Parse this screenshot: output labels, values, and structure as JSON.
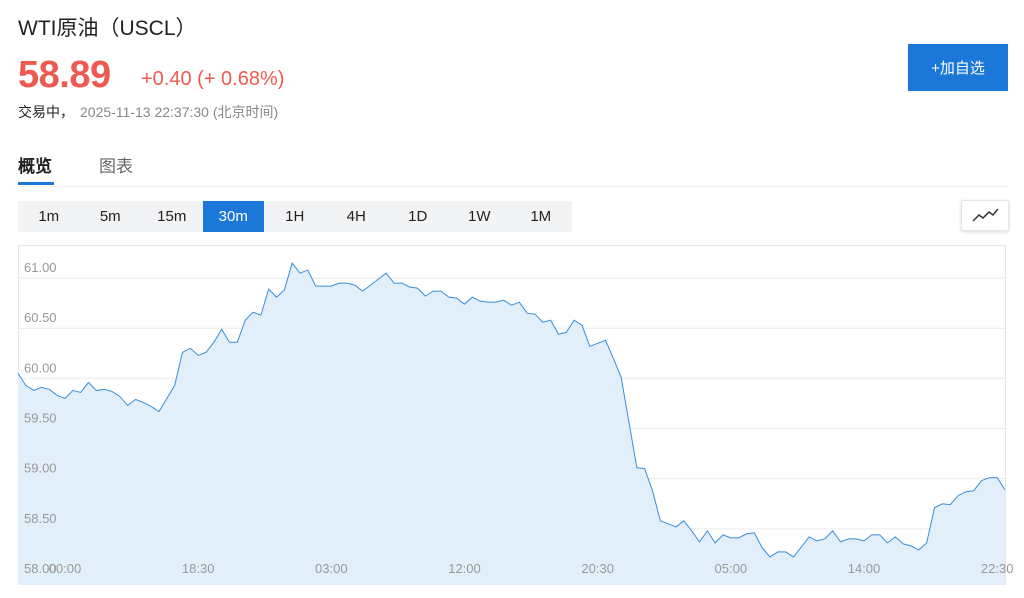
{
  "header": {
    "title": "WTI原油（USCL）",
    "price": "58.89",
    "change": "+0.40 (+ 0.68%)",
    "status": "交易中，",
    "time": "2025-11-13 22:37:30 (北京时间)",
    "button": "+加自选"
  },
  "tabs": [
    "概览",
    "图表"
  ],
  "intervals": [
    "1m",
    "5m",
    "15m",
    "30m",
    "1H",
    "4H",
    "1D",
    "1W",
    "1M"
  ],
  "chart_data": {
    "type": "area",
    "color": "#3a8ed8",
    "fill": "#e2effb",
    "grid": true,
    "categories": [
      null,
      null,
      null,
      null,
      null,
      null,
      "00:00",
      null,
      null,
      null,
      null,
      null,
      null,
      null,
      null,
      null,
      null,
      null,
      null,
      null,
      null,
      null,
      null,
      "18:30",
      null,
      null,
      null,
      null,
      null,
      null,
      null,
      null,
      null,
      null,
      null,
      null,
      null,
      null,
      null,
      null,
      "03:00",
      null,
      null,
      null,
      null,
      null,
      null,
      null,
      null,
      null,
      null,
      null,
      null,
      null,
      null,
      null,
      null,
      "12:00",
      null,
      null,
      null,
      null,
      null,
      null,
      null,
      null,
      null,
      null,
      null,
      null,
      null,
      null,
      null,
      null,
      "20:30",
      null,
      null,
      null,
      null,
      null,
      null,
      null,
      null,
      null,
      null,
      null,
      null,
      null,
      null,
      null,
      null,
      "05:00",
      null,
      null,
      null,
      null,
      null,
      null,
      null,
      null,
      null,
      null,
      null,
      null,
      null,
      null,
      null,
      null,
      "14:00",
      null,
      null,
      null,
      null,
      null,
      null,
      null,
      null,
      null,
      null,
      null,
      null,
      null,
      null,
      null,
      null,
      "22:30",
      null
    ],
    "values": [
      60.05,
      59.93,
      59.88,
      59.91,
      59.89,
      59.83,
      59.8,
      59.88,
      59.86,
      59.96,
      59.88,
      59.89,
      59.87,
      59.82,
      59.73,
      59.79,
      59.76,
      59.72,
      59.67,
      59.8,
      59.93,
      60.26,
      60.3,
      60.23,
      60.26,
      60.36,
      60.49,
      60.36,
      60.36,
      60.58,
      60.66,
      60.63,
      60.89,
      60.81,
      60.88,
      61.15,
      61.05,
      61.08,
      60.92,
      60.92,
      60.92,
      60.95,
      60.95,
      60.93,
      60.87,
      60.93,
      60.99,
      61.05,
      60.95,
      60.95,
      60.91,
      60.9,
      60.82,
      60.87,
      60.87,
      60.81,
      60.8,
      60.74,
      60.81,
      60.77,
      60.76,
      60.76,
      60.78,
      60.73,
      60.76,
      60.65,
      60.64,
      60.56,
      60.58,
      60.44,
      60.46,
      60.58,
      60.53,
      60.32,
      60.35,
      60.38,
      60.2,
      60.01,
      59.56,
      59.11,
      59.1,
      58.88,
      58.58,
      58.55,
      58.52,
      58.58,
      58.48,
      58.37,
      58.48,
      58.36,
      58.44,
      58.41,
      58.41,
      58.45,
      58.46,
      58.31,
      58.22,
      58.27,
      58.27,
      58.22,
      58.32,
      58.42,
      58.38,
      58.4,
      58.48,
      58.37,
      58.4,
      58.4,
      58.38,
      58.44,
      58.44,
      58.36,
      58.42,
      58.35,
      58.33,
      58.29,
      58.36,
      58.71,
      58.75,
      58.74,
      58.83,
      58.87,
      58.88,
      58.98,
      59.01,
      59.01,
      58.89
    ],
    "ylim": [
      57.94,
      61.33
    ],
    "yticks": [
      {
        "value": 58,
        "label": "58.00"
      },
      {
        "value": 58.5,
        "label": "58.50"
      },
      {
        "value": 59,
        "label": "59.00"
      },
      {
        "value": 59.5,
        "label": "59.50"
      },
      {
        "value": 60,
        "label": "60.00"
      },
      {
        "value": 60.5,
        "label": "60.50"
      },
      {
        "value": 61,
        "label": "61.00"
      }
    ]
  }
}
